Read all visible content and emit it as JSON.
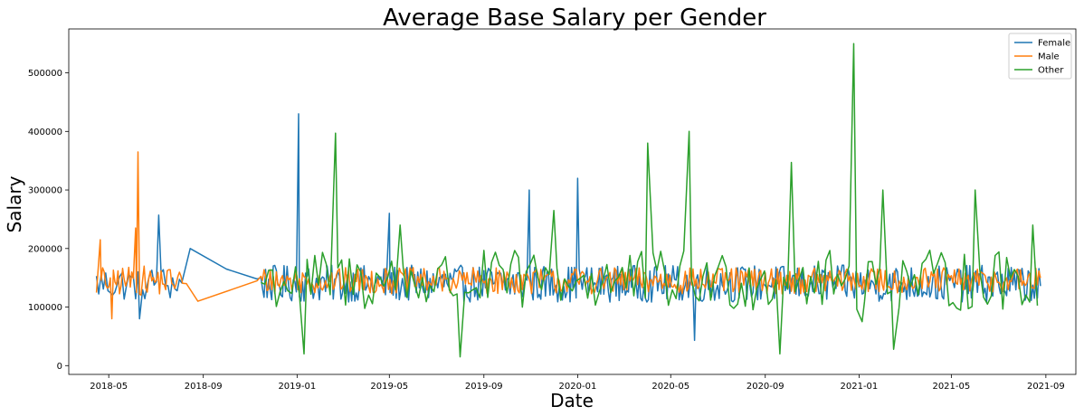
{
  "chart_data": {
    "type": "line",
    "title": "Average Base Salary per Gender",
    "xlabel": "Date",
    "ylabel": "Salary",
    "x_ticks": [
      "2018-05",
      "2018-09",
      "2019-01",
      "2019-05",
      "2019-09",
      "2020-01",
      "2020-05",
      "2020-09",
      "2021-01",
      "2021-05",
      "2021-09"
    ],
    "y_ticks": [
      0,
      100000,
      200000,
      300000,
      400000,
      500000
    ],
    "y_tick_labels": [
      "0",
      "100000",
      "200000",
      "300000",
      "400000",
      "500000"
    ],
    "xlim": [
      "2018-03-10",
      "2021-10-10"
    ],
    "ylim": [
      -15000,
      575000
    ],
    "grid": false,
    "legend": "top-right",
    "series": [
      {
        "name": "Female",
        "color": "#1f77b4",
        "x_range": [
          "2018-04-15",
          "2021-08-25"
        ],
        "typical_range": [
          110000,
          170000
        ],
        "sparse_points": [
          [
            "2018-08-15",
            200000
          ],
          [
            "2018-10-01",
            165000
          ],
          [
            "2018-11-10",
            148000
          ]
        ],
        "notable_points": [
          [
            "2018-06-10",
            80000
          ],
          [
            "2018-07-05",
            257000
          ],
          [
            "2019-01-03",
            430000
          ],
          [
            "2019-05-01",
            260000
          ],
          [
            "2019-10-30",
            300000
          ],
          [
            "2020-01-01",
            320000
          ],
          [
            "2020-06-01",
            43000
          ]
        ]
      },
      {
        "name": "Male",
        "color": "#ff7f0e",
        "x_range": [
          "2018-04-15",
          "2021-08-25"
        ],
        "typical_range": [
          120000,
          170000
        ],
        "sparse_points": [
          [
            "2018-08-10",
            140000
          ],
          [
            "2018-08-25",
            110000
          ],
          [
            "2018-11-10",
            145000
          ]
        ],
        "notable_points": [
          [
            "2018-04-20",
            215000
          ],
          [
            "2018-05-05",
            80000
          ],
          [
            "2018-06-08",
            365000
          ],
          [
            "2018-06-05",
            235000
          ]
        ]
      },
      {
        "name": "Other",
        "color": "#2ca02c",
        "x_range": [
          "2018-11-15",
          "2021-08-25"
        ],
        "typical_range": [
          90000,
          200000
        ],
        "notable_points": [
          [
            "2019-01-10",
            20000
          ],
          [
            "2019-02-20",
            397000
          ],
          [
            "2019-05-15",
            240000
          ],
          [
            "2019-08-01",
            15000
          ],
          [
            "2019-12-01",
            265000
          ],
          [
            "2020-04-01",
            380000
          ],
          [
            "2020-05-25",
            400000
          ],
          [
            "2020-09-20",
            20000
          ],
          [
            "2020-10-05",
            347000
          ],
          [
            "2020-12-25",
            550000
          ],
          [
            "2021-01-05",
            75000
          ],
          [
            "2021-02-01",
            300000
          ],
          [
            "2021-02-15",
            28000
          ],
          [
            "2021-06-01",
            300000
          ],
          [
            "2021-08-15",
            240000
          ]
        ]
      }
    ]
  }
}
